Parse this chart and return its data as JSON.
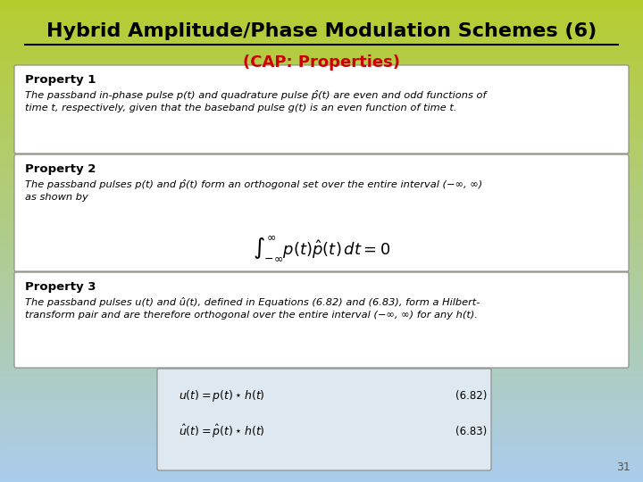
{
  "title": "Hybrid Amplitude/Phase Modulation Schemes (6)",
  "subtitle": "(CAP: Properties)",
  "title_color": "#000000",
  "subtitle_color": "#cc0000",
  "bg_top_color": "#b5cc2e",
  "bg_bottom_color": "#aaccee",
  "box_bg_color": "#ffffff",
  "box_border_color": "#888888",
  "page_number": "31",
  "property1_header": "Property 1",
  "property1_text": "The passband in-phase pulse p(t) and quadrature pulse p̂(t) are even and odd functions of\ntime t, respectively, given that the baseband pulse g(t) is an even function of time t.",
  "property2_header": "Property 2",
  "property2_text": "The passband pulses p(t) and p̂(t) form an orthogonal set over the entire interval (−∞, ∞)\nas shown by",
  "property3_header": "Property 3",
  "property3_text": "The passband pulses u(t) and û(t), defined in Equations (6.82) and (6.83), form a Hilbert-\ntransform pair and are therefore orthogonal over the entire interval (−∞, ∞) for any h(t).",
  "eq1_label": "(6.82)",
  "eq2_label": "(6.83)",
  "eq_box_color": "#dde8f0"
}
